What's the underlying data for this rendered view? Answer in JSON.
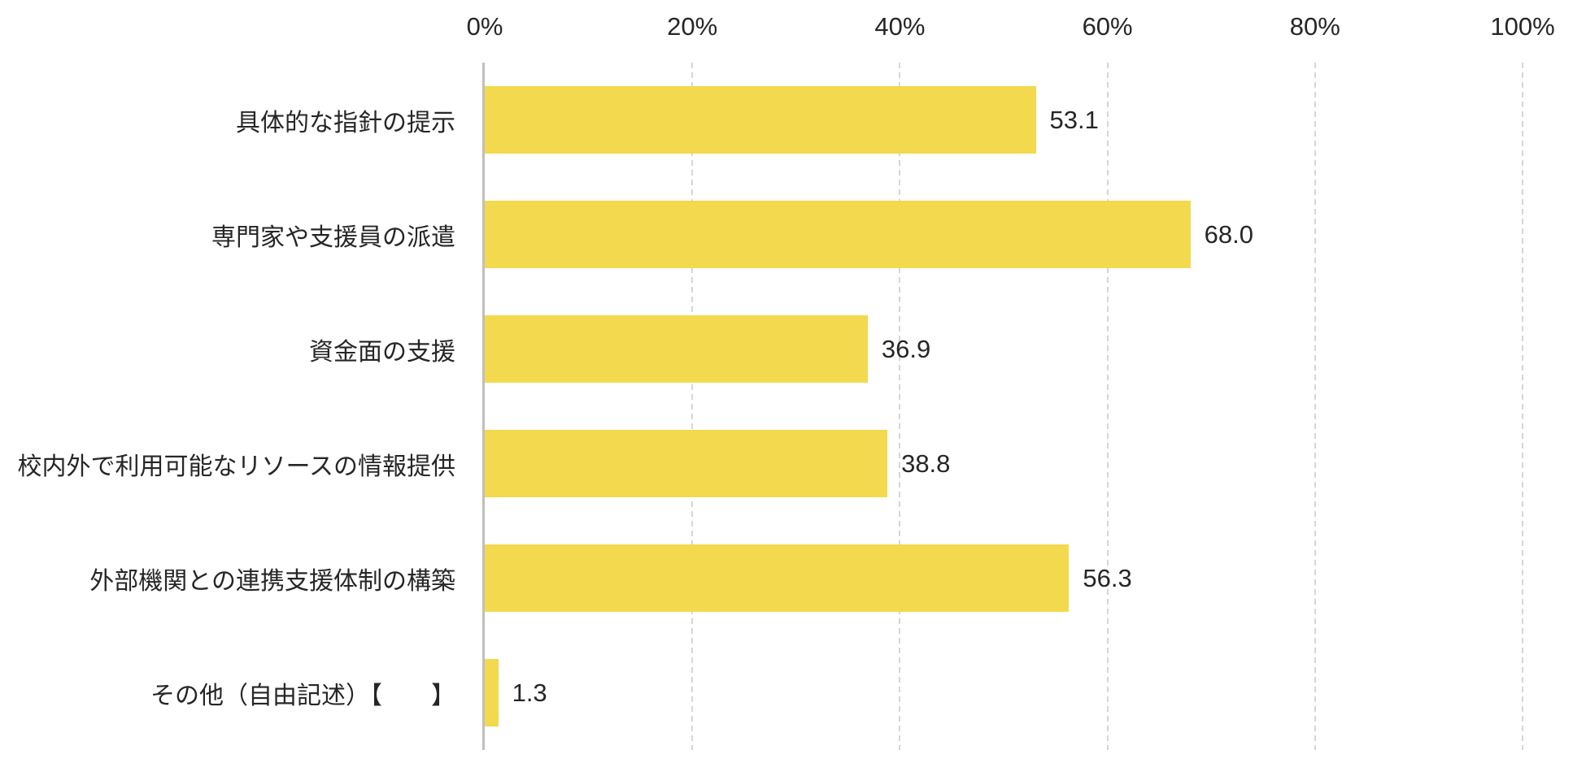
{
  "chart_data": {
    "type": "bar",
    "orientation": "horizontal",
    "title": "",
    "categories": [
      "具体的な指針の提示",
      "専門家や支援員の派遣",
      "資金面の支援",
      "校内外で利用可能なリソースの情報提供",
      "外部機関との連携支援体制の構築",
      "その他（自由記述）【　　】"
    ],
    "values": [
      53.1,
      68.0,
      36.9,
      38.8,
      56.3,
      1.3
    ],
    "values_display": [
      "53.1",
      "68.0",
      "36.9",
      "38.8",
      "56.3",
      "1.3"
    ],
    "x_ticks": [
      "0%",
      "20%",
      "40%",
      "60%",
      "80%",
      "100%"
    ],
    "xlim": [
      0,
      100
    ],
    "xlabel": "",
    "ylabel": "",
    "legend": null,
    "grid": "vertical-dashed-every-20pct",
    "axis_labels_position": "top",
    "colors": {
      "bar": "#f3d94d",
      "axis_line": "#bfbfbf",
      "gridline": "#d6d6d6",
      "text": "#262626",
      "background": "#ffffff"
    }
  }
}
